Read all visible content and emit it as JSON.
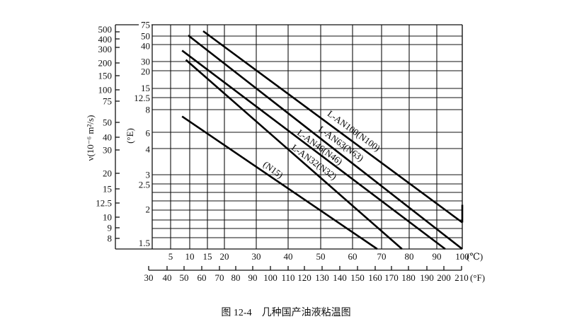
{
  "chart_data": {
    "type": "line",
    "title": "",
    "caption": "图 12-4　几种国产油液粘温图",
    "ylabel": "ν(10⁻⁶ m²/s)",
    "y2label": "(°E)",
    "xunit_c": "(℃)",
    "xunit_f": "(°F)",
    "grid": true,
    "yscale": "viscosity-temperature (log-log)",
    "y_ticks": [
      500,
      400,
      300,
      200,
      150,
      100,
      75,
      50,
      40,
      30,
      20,
      15,
      12.5,
      10,
      9,
      8
    ],
    "y2_ticks": [
      "75",
      "50",
      "40",
      "30",
      "20",
      "15",
      "12.5",
      "8",
      "6",
      "4",
      "3",
      "2.5",
      "2",
      "1.5"
    ],
    "x_ticks_c": [
      5,
      10,
      15,
      20,
      30,
      40,
      50,
      60,
      70,
      80,
      90,
      100
    ],
    "x_ticks_f": [
      30,
      40,
      50,
      60,
      70,
      80,
      90,
      100,
      110,
      120,
      130,
      140,
      150,
      160,
      170,
      180,
      190,
      200,
      210
    ],
    "series": [
      {
        "name": "L-AN100(N100)",
        "points": [
          [
            13.8,
            510
          ],
          [
            100,
            9.5
          ]
        ]
      },
      {
        "name": "L-AN63(N63)",
        "points": [
          [
            9.6,
            450
          ],
          [
            100,
            7
          ]
        ]
      },
      {
        "name": "L-AN46(N46)",
        "points": [
          [
            8,
            280
          ],
          [
            93.3,
            7
          ]
        ]
      },
      {
        "name": "L-AN32(N32)",
        "points": [
          [
            9,
            220
          ],
          [
            77.4,
            7
          ]
        ]
      },
      {
        "name": "(N15)",
        "points": [
          [
            8,
            57
          ],
          [
            68.5,
            7
          ]
        ]
      }
    ]
  }
}
